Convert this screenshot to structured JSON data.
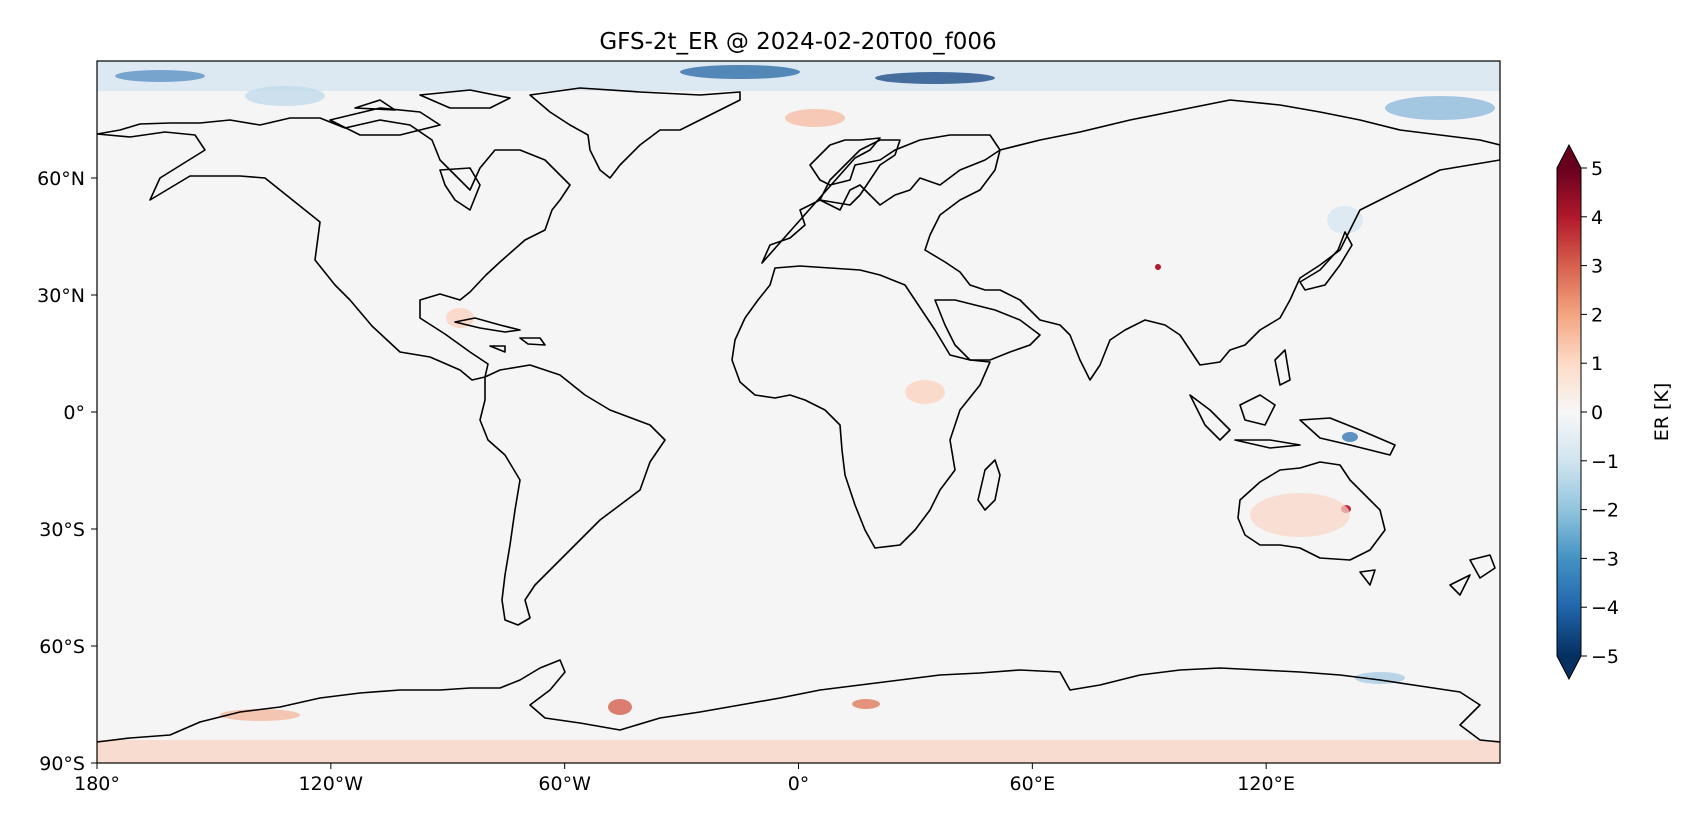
{
  "title": "GFS-2t_ER @ 2024-02-20T00_f006",
  "map": {
    "projection": "PlateCarree",
    "lon_range": [
      -180,
      180
    ],
    "lat_range": [
      -90,
      90
    ],
    "x_ticks": [
      {
        "lon": -180,
        "label": "180°"
      },
      {
        "lon": -120,
        "label": "120°W"
      },
      {
        "lon": -60,
        "label": "60°W"
      },
      {
        "lon": 0,
        "label": "0°"
      },
      {
        "lon": 60,
        "label": "60°E"
      },
      {
        "lon": 120,
        "label": "120°E"
      }
    ],
    "y_ticks": [
      {
        "lat": 60,
        "label": "60°N"
      },
      {
        "lat": 30,
        "label": "30°N"
      },
      {
        "lat": 0,
        "label": "0°"
      },
      {
        "lat": -30,
        "label": "30°S"
      },
      {
        "lat": -60,
        "label": "60°S"
      },
      {
        "lat": -90,
        "label": "90°S"
      }
    ],
    "background_color": "#f5f5f5",
    "coastline_color": "#000000"
  },
  "colorbar": {
    "label": "ER [K]",
    "colormap": "RdBu_r",
    "range": [
      -5,
      5
    ],
    "extend": "both",
    "ticks": [
      {
        "value": 5,
        "label": "5"
      },
      {
        "value": 4,
        "label": "4"
      },
      {
        "value": 3,
        "label": "3"
      },
      {
        "value": 2,
        "label": "2"
      },
      {
        "value": 1,
        "label": "1"
      },
      {
        "value": 0,
        "label": "0"
      },
      {
        "value": -1,
        "label": "−1"
      },
      {
        "value": -2,
        "label": "−2"
      },
      {
        "value": -3,
        "label": "−3"
      },
      {
        "value": -4,
        "label": "−4"
      },
      {
        "value": -5,
        "label": "−5"
      }
    ],
    "colors": [
      "#053061",
      "#2166ac",
      "#4393c3",
      "#92c5de",
      "#d1e5f0",
      "#f7f7f7",
      "#fddbc7",
      "#f4a582",
      "#d6604d",
      "#b2182b",
      "#67001f"
    ]
  }
}
